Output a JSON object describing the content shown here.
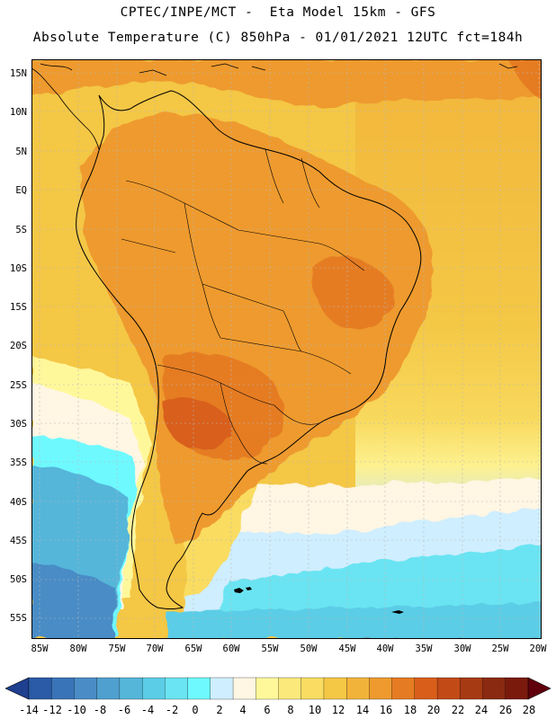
{
  "header": {
    "line1": "CPTEC/INPE/MCT -  Eta Model 15km - GFS",
    "line2": "Absolute Temperature (C) 850hPa - 01/01/2021 12UTC fct=184h"
  },
  "map": {
    "latitude_labels": [
      "15N",
      "10N",
      "5N",
      "EQ",
      "5S",
      "10S",
      "15S",
      "20S",
      "25S",
      "30S",
      "35S",
      "40S",
      "45S",
      "50S",
      "55S"
    ],
    "longitude_labels": [
      "85W",
      "80W",
      "75W",
      "70W",
      "65W",
      "60W",
      "55W",
      "50W",
      "45W",
      "40W",
      "35W",
      "30W",
      "25W",
      "20W"
    ],
    "gridlines": "dashed"
  },
  "colorbar": {
    "labels": [
      "-14",
      "-12",
      "-10",
      "-8",
      "-6",
      "-4",
      "-2",
      "0",
      "2",
      "4",
      "6",
      "8",
      "10",
      "12",
      "14",
      "16",
      "18",
      "20",
      "22",
      "24",
      "26",
      "28"
    ],
    "colors": [
      "#1f3f8f",
      "#2b5aa6",
      "#3a74b8",
      "#4a8cc6",
      "#4fa0cf",
      "#55b6da",
      "#5ccde6",
      "#6ae4f2",
      "#6ef9ff",
      "#cfeeff",
      "#fff6e3",
      "#fff89b",
      "#fbe97c",
      "#f9dc61",
      "#f4c745",
      "#f2b33a",
      "#ee9a2e",
      "#e57b22",
      "#d85e1a",
      "#c24a16",
      "#a63a13",
      "#8a2a10",
      "#7a1a0d",
      "#60000c"
    ]
  }
}
